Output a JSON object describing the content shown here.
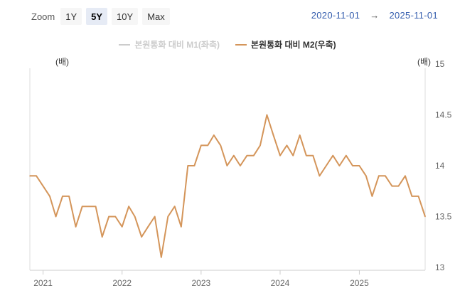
{
  "zoom": {
    "label": "Zoom",
    "buttons": [
      {
        "label": "1Y",
        "active": false
      },
      {
        "label": "5Y",
        "active": true
      },
      {
        "label": "10Y",
        "active": false
      },
      {
        "label": "Max",
        "active": false
      }
    ]
  },
  "range": {
    "from": "2020-11-01",
    "arrow": "→",
    "to": "2025-11-01"
  },
  "legend": [
    {
      "name": "본원통화 대비 M1(좌축)",
      "visible": false,
      "color": "#cccccc"
    },
    {
      "name": "본원통화 대비 M2(우축)",
      "visible": true,
      "color": "#d4955a"
    }
  ],
  "axes": {
    "left_unit": "(배)",
    "right_unit": "(배)"
  },
  "chart_data": {
    "type": "line",
    "x_ticks": [
      "2021",
      "2022",
      "2023",
      "2024",
      "2025"
    ],
    "yaxis_right": {
      "ticks": [
        "13",
        "13.5",
        "14",
        "14.5",
        "15"
      ],
      "range": [
        13,
        15
      ]
    },
    "grid": false,
    "series": [
      {
        "name": "본원통화 대비 M2(우축)",
        "color": "#d4955a",
        "x": [
          "2020-11",
          "2020-12",
          "2021-01",
          "2021-02",
          "2021-03",
          "2021-04",
          "2021-05",
          "2021-06",
          "2021-07",
          "2021-08",
          "2021-09",
          "2021-10",
          "2021-11",
          "2021-12",
          "2022-01",
          "2022-02",
          "2022-03",
          "2022-04",
          "2022-05",
          "2022-06",
          "2022-07",
          "2022-08",
          "2022-09",
          "2022-10",
          "2022-11",
          "2022-12",
          "2023-01",
          "2023-02",
          "2023-03",
          "2023-04",
          "2023-05",
          "2023-06",
          "2023-07",
          "2023-08",
          "2023-09",
          "2023-10",
          "2023-11",
          "2023-12",
          "2024-01",
          "2024-02",
          "2024-03",
          "2024-04",
          "2024-05",
          "2024-06",
          "2024-07",
          "2024-08",
          "2024-09",
          "2024-10",
          "2024-11",
          "2024-12",
          "2025-01",
          "2025-02",
          "2025-03",
          "2025-04",
          "2025-05",
          "2025-06",
          "2025-07",
          "2025-08",
          "2025-09",
          "2025-10",
          "2025-11"
        ],
        "values": [
          13.9,
          13.9,
          13.8,
          13.7,
          13.5,
          13.7,
          13.7,
          13.4,
          13.6,
          13.6,
          13.6,
          13.3,
          13.5,
          13.5,
          13.4,
          13.6,
          13.5,
          13.3,
          13.4,
          13.5,
          13.1,
          13.5,
          13.6,
          13.4,
          14.0,
          14.0,
          14.2,
          14.2,
          14.3,
          14.2,
          14.0,
          14.1,
          14.0,
          14.1,
          14.1,
          14.2,
          14.5,
          14.3,
          14.1,
          14.2,
          14.1,
          14.3,
          14.1,
          14.1,
          13.9,
          14.0,
          14.1,
          14.0,
          14.1,
          14.0,
          14.0,
          13.9,
          13.7,
          13.9,
          13.9,
          13.8,
          13.8,
          13.9,
          13.7,
          13.7,
          13.5
        ]
      }
    ]
  }
}
